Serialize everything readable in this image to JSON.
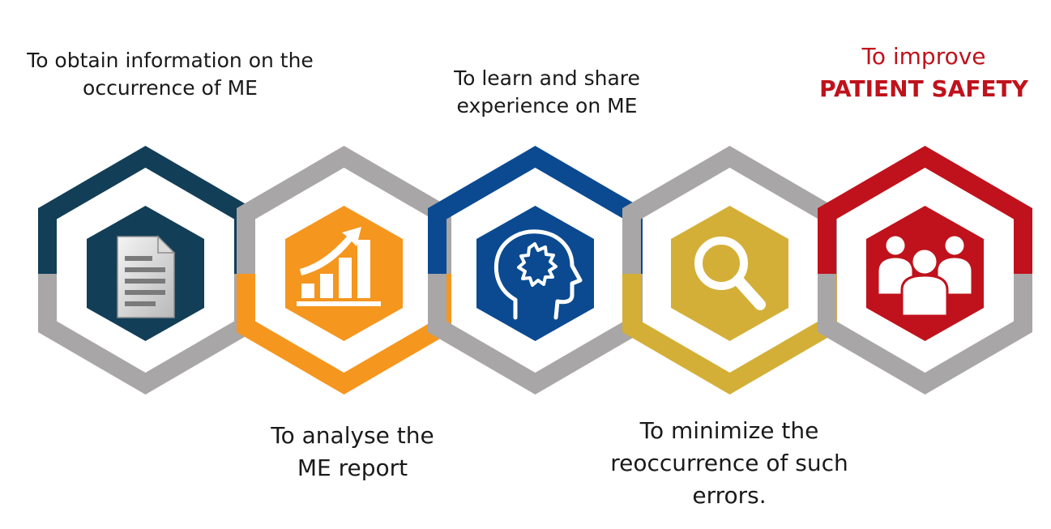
{
  "steps": [
    {
      "id": "obtain",
      "lines": [
        "To obtain information on the",
        "occurrence of ME"
      ],
      "color": "#123e57",
      "icon": "document-icon"
    },
    {
      "id": "analyse",
      "lines": [
        "To analyse the",
        "ME report"
      ],
      "color": "#f5961f",
      "icon": "growth-chart-icon"
    },
    {
      "id": "learn",
      "lines": [
        "To learn and share",
        "experience on ME"
      ],
      "color": "#0b4a91",
      "icon": "brain-head-icon"
    },
    {
      "id": "minimize",
      "lines": [
        "To minimize the",
        "reoccurrence of such",
        "errors."
      ],
      "color": "#d4af37",
      "icon": "magnifier-icon"
    },
    {
      "id": "improve",
      "lines": [
        "To improve",
        "PATIENT SAFETY"
      ],
      "color": "#c0121c",
      "icon": "people-group-icon"
    }
  ],
  "connector_color": "#a8a6a6"
}
